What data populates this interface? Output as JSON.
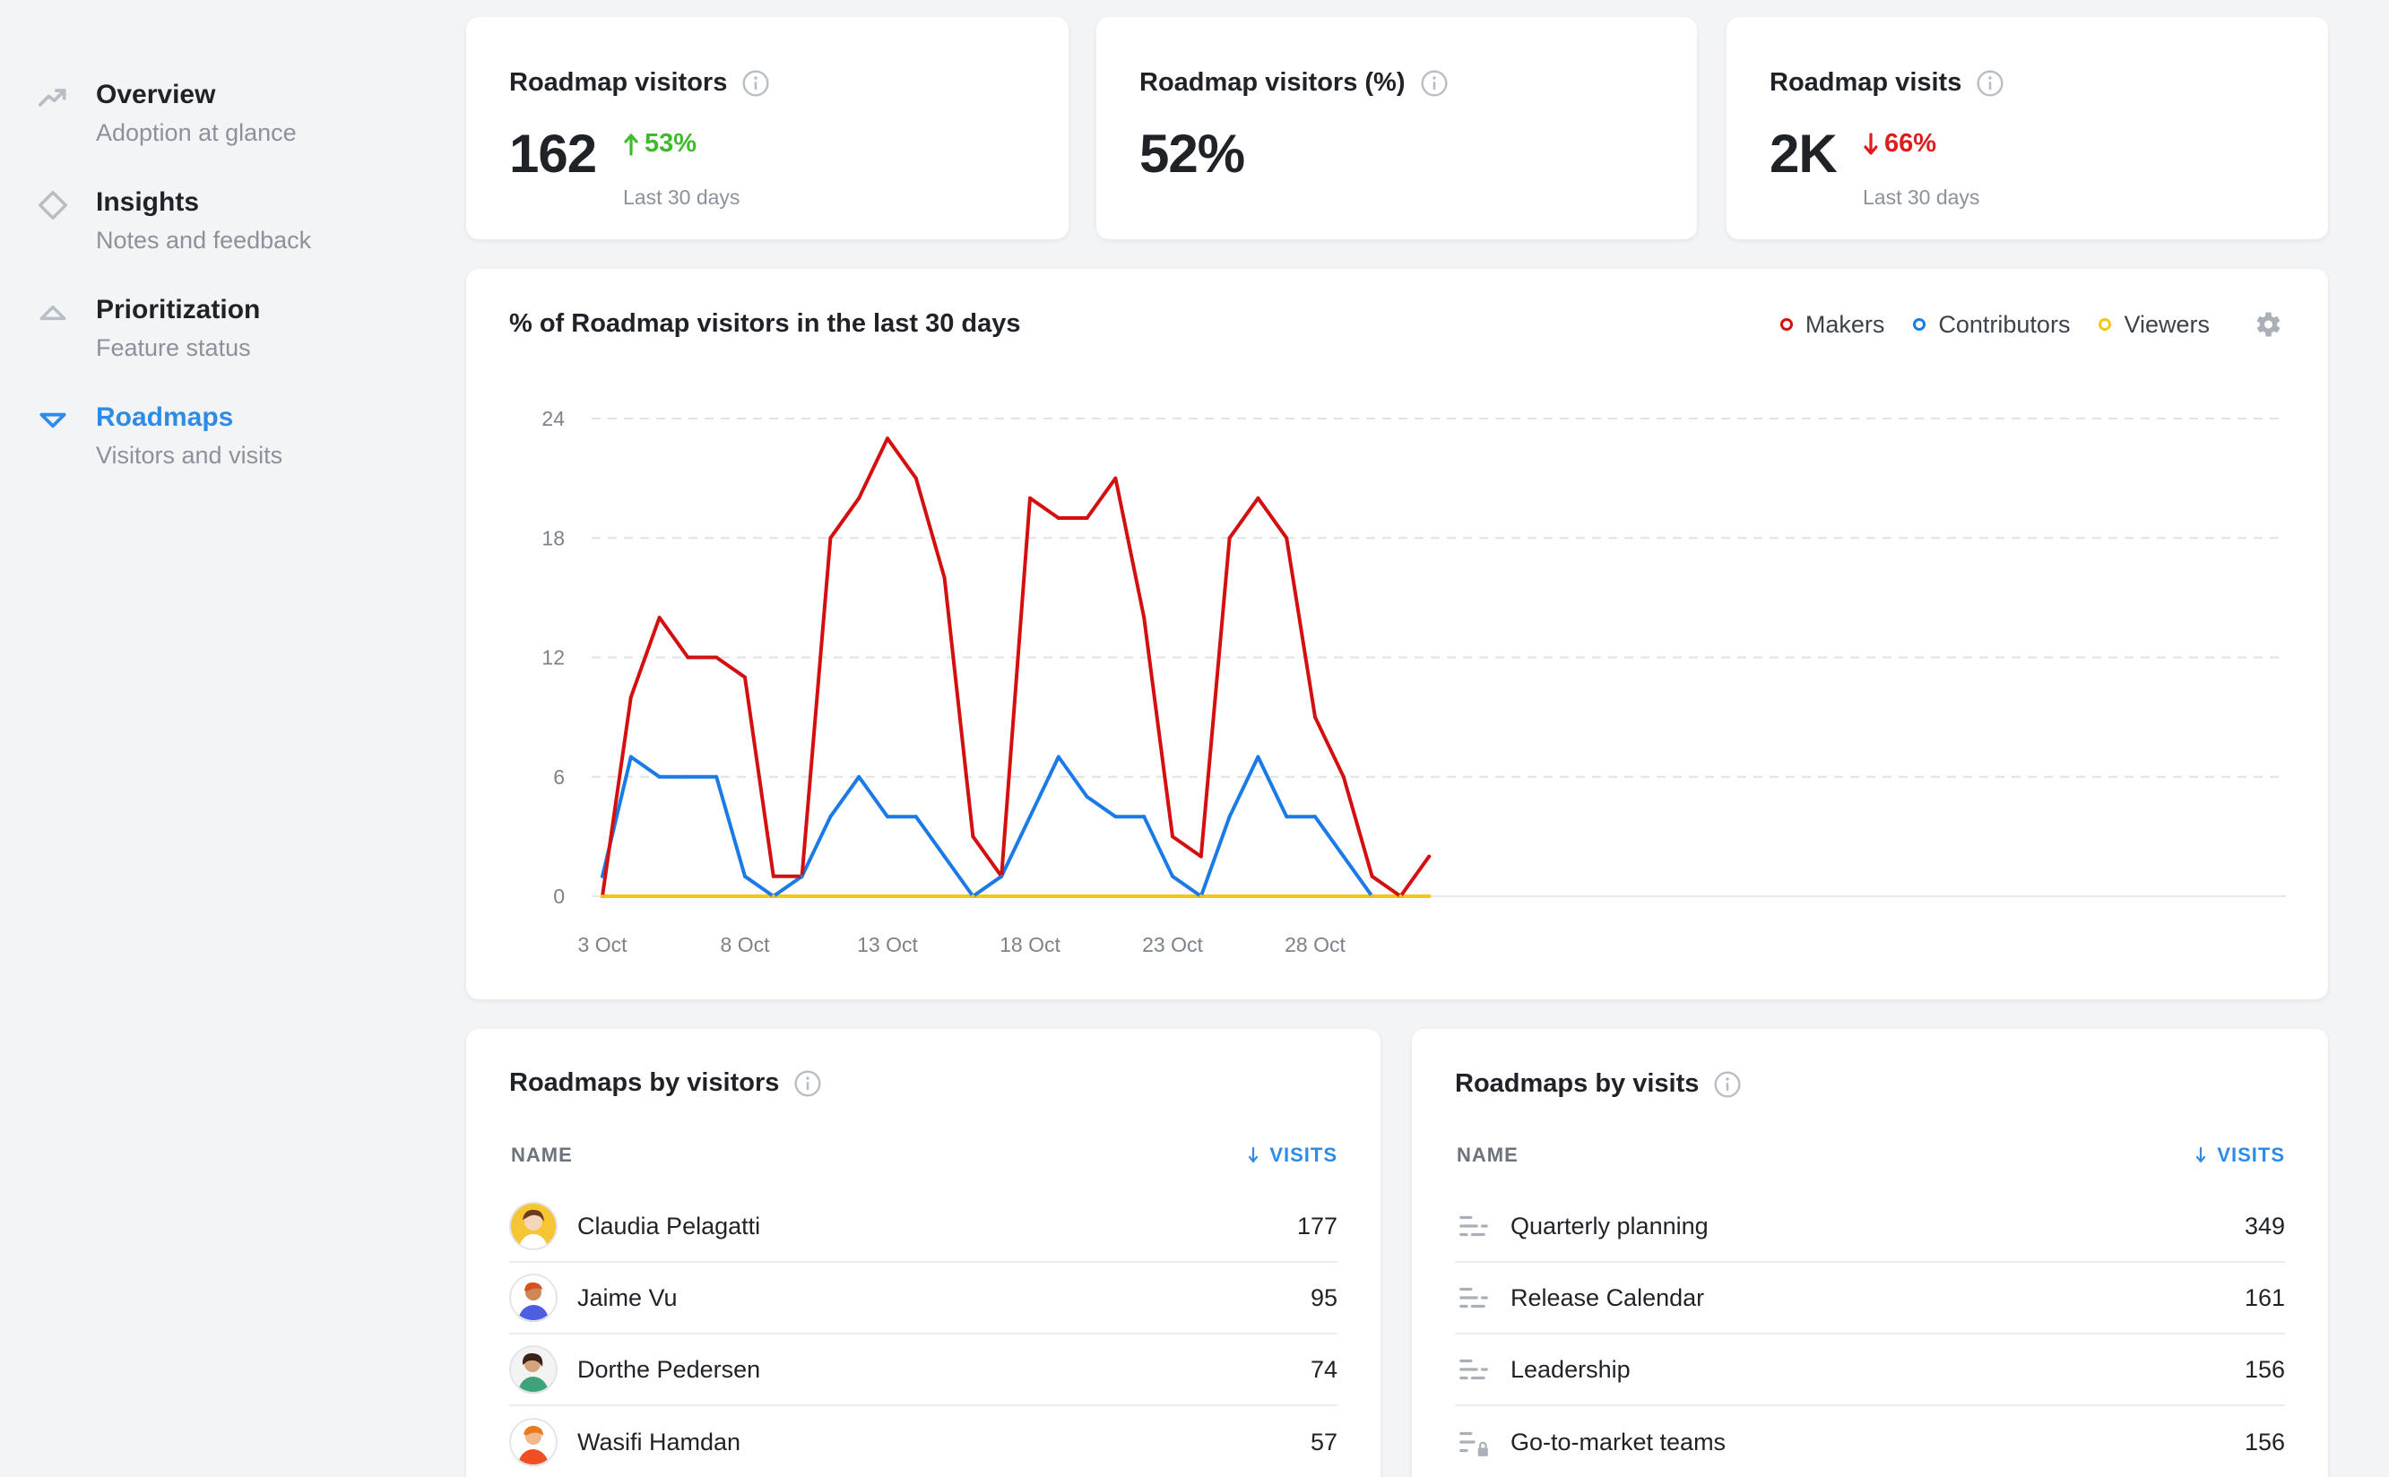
{
  "sidebar": {
    "items": [
      {
        "title": "Overview",
        "subtitle": "Adoption at glance",
        "icon": "trend-up-icon"
      },
      {
        "title": "Insights",
        "subtitle": "Notes and feedback",
        "icon": "diamond-icon"
      },
      {
        "title": "Prioritization",
        "subtitle": "Feature status",
        "icon": "triangle-up-icon"
      },
      {
        "title": "Roadmaps",
        "subtitle": "Visitors and visits",
        "icon": "triangle-down-icon",
        "active": true
      }
    ]
  },
  "stats": [
    {
      "title": "Roadmap visitors",
      "value": "162",
      "change": "53%",
      "direction": "up",
      "period": "Last 30 days"
    },
    {
      "title": "Roadmap visitors (%)",
      "value": "52%"
    },
    {
      "title": "Roadmap visits",
      "value": "2K",
      "change": "66%",
      "direction": "down",
      "period": "Last 30 days"
    }
  ],
  "chart": {
    "title": "% of Roadmap visitors in the last 30 days",
    "legend": [
      "Makers",
      "Contributors",
      "Viewers"
    ]
  },
  "chart_data": {
    "type": "line",
    "title": "% of Roadmap visitors in the last 30 days",
    "x": [
      "3 Oct",
      "4 Oct",
      "5 Oct",
      "6 Oct",
      "7 Oct",
      "8 Oct",
      "9 Oct",
      "10 Oct",
      "11 Oct",
      "12 Oct",
      "13 Oct",
      "14 Oct",
      "15 Oct",
      "16 Oct",
      "17 Oct",
      "18 Oct",
      "19 Oct",
      "20 Oct",
      "21 Oct",
      "22 Oct",
      "23 Oct",
      "24 Oct",
      "25 Oct",
      "26 Oct",
      "27 Oct",
      "28 Oct",
      "29 Oct",
      "30 Oct",
      "31 Oct",
      "1 Nov"
    ],
    "x_tick_labels": [
      "3 Oct",
      "8 Oct",
      "13 Oct",
      "18 Oct",
      "23 Oct",
      "28 Oct"
    ],
    "y_ticks": [
      0,
      6,
      12,
      18,
      24
    ],
    "ylim": [
      0,
      24
    ],
    "grid": true,
    "legend_position": "top-right",
    "series": [
      {
        "name": "Makers",
        "color": "#d40f0f",
        "values": [
          0,
          10,
          14,
          12,
          12,
          11,
          1,
          1,
          18,
          20,
          23,
          21,
          16,
          3,
          1,
          20,
          19,
          19,
          21,
          14,
          3,
          2,
          18,
          20,
          18,
          9,
          6,
          1,
          0,
          2
        ]
      },
      {
        "name": "Contributors",
        "color": "#1a7ae6",
        "values": [
          1,
          7,
          6,
          6,
          6,
          1,
          0,
          1,
          4,
          6,
          4,
          4,
          2,
          0,
          1,
          4,
          7,
          5,
          4,
          4,
          1,
          0,
          4,
          7,
          4,
          4,
          2,
          0,
          null,
          null
        ]
      },
      {
        "name": "Viewers",
        "color": "#f5c518",
        "values": [
          0,
          0,
          0,
          0,
          0,
          0,
          0,
          0,
          0,
          0,
          0,
          0,
          0,
          0,
          0,
          0,
          0,
          0,
          0,
          0,
          0,
          0,
          0,
          0,
          0,
          0,
          0,
          0,
          0,
          0
        ]
      }
    ]
  },
  "by_visitors": {
    "title": "Roadmaps by visitors",
    "col_name": "NAME",
    "col_visits": "VISITS",
    "rows": [
      {
        "name": "Claudia Pelagatti",
        "visits": "177"
      },
      {
        "name": "Jaime Vu",
        "visits": "95"
      },
      {
        "name": "Dorthe Pedersen",
        "visits": "74"
      },
      {
        "name": "Wasifi Hamdan",
        "visits": "57"
      }
    ]
  },
  "by_visits": {
    "title": "Roadmaps by visits",
    "col_name": "NAME",
    "col_visits": "VISITS",
    "rows": [
      {
        "name": "Quarterly planning",
        "visits": "349",
        "icon": "roadmap-list-icon"
      },
      {
        "name": "Release Calendar",
        "visits": "161",
        "icon": "roadmap-list-icon"
      },
      {
        "name": "Leadership",
        "visits": "156",
        "icon": "roadmap-list-icon"
      },
      {
        "name": "Go-to-market teams",
        "visits": "156",
        "icon": "roadmap-list-locked-icon"
      }
    ]
  },
  "colors": {
    "accent": "#2e8be6",
    "positive": "#3fba2b",
    "negative": "#df1c1c",
    "makers": "#d40f0f",
    "contributors": "#1a7ae6",
    "viewers": "#f5c518"
  }
}
